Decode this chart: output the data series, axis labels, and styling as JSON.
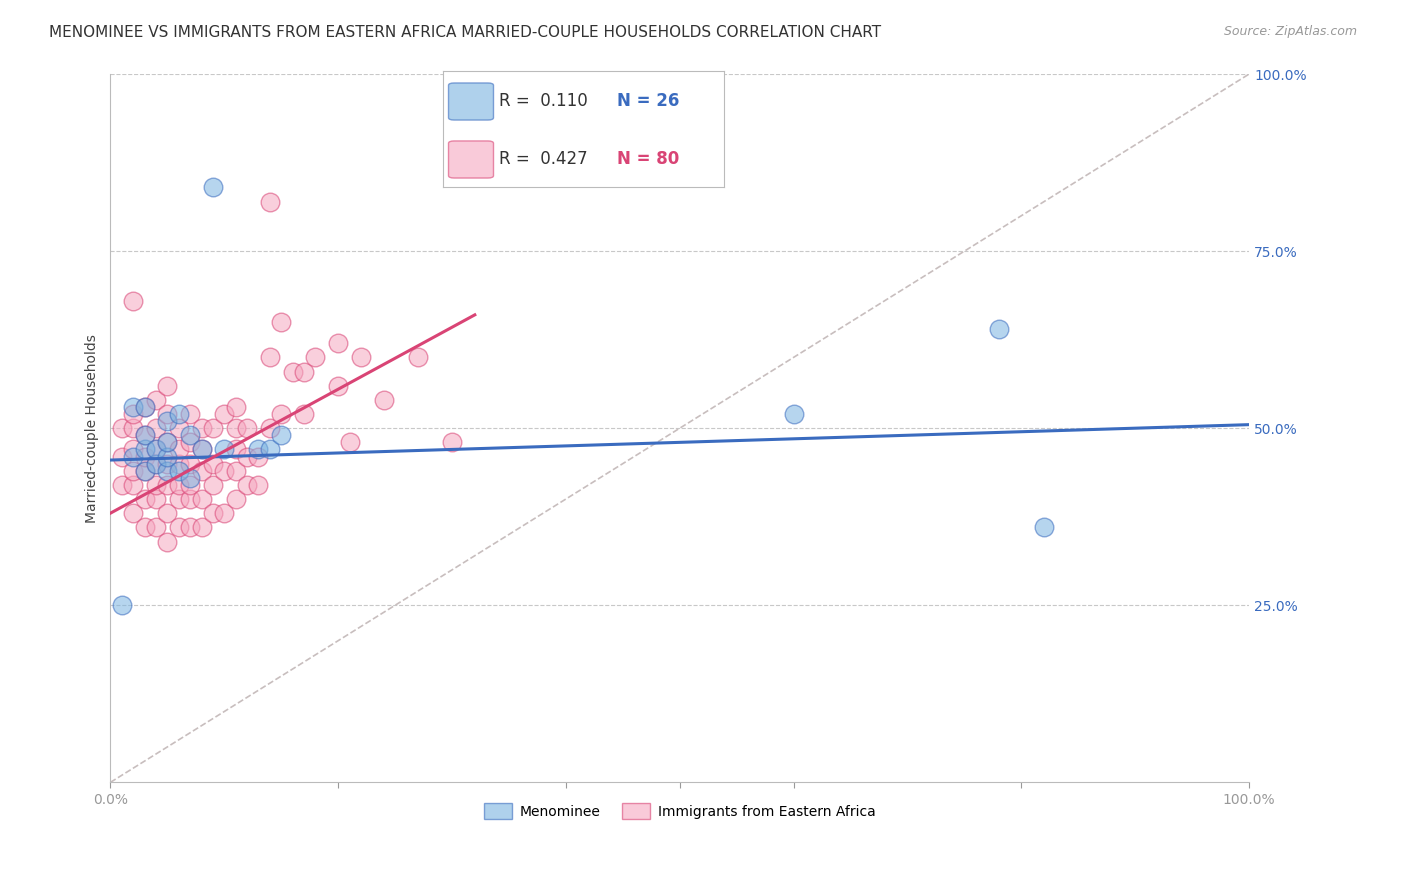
{
  "title": "MENOMINEE VS IMMIGRANTS FROM EASTERN AFRICA MARRIED-COUPLE HOUSEHOLDS CORRELATION CHART",
  "source": "Source: ZipAtlas.com",
  "ylabel": "Married-couple Households",
  "xlim": [
    0,
    1.0
  ],
  "ylim": [
    0,
    1.0
  ],
  "ytick_positions": [
    0.25,
    0.5,
    0.75,
    1.0
  ],
  "ytick_labels": [
    "25.0%",
    "50.0%",
    "75.0%",
    "100.0%"
  ],
  "grid_color": "#c8c8c8",
  "background_color": "#ffffff",
  "legend_r1": "0.110",
  "legend_n1": "26",
  "legend_r2": "0.427",
  "legend_n2": "80",
  "blue_color": "#7ab3e0",
  "pink_color": "#f5a8c0",
  "blue_line_color": "#3a6bbf",
  "pink_line_color": "#d94475",
  "diagonal_color": "#c8bebe",
  "title_fontsize": 11,
  "source_fontsize": 9,
  "axis_label_fontsize": 10,
  "tick_fontsize": 10,
  "legend_fontsize": 12,
  "menominee_x": [
    0.01,
    0.02,
    0.02,
    0.03,
    0.03,
    0.03,
    0.03,
    0.04,
    0.04,
    0.05,
    0.05,
    0.05,
    0.05,
    0.06,
    0.06,
    0.07,
    0.07,
    0.08,
    0.09,
    0.1,
    0.13,
    0.14,
    0.15,
    0.6,
    0.78,
    0.82
  ],
  "menominee_y": [
    0.25,
    0.46,
    0.53,
    0.44,
    0.47,
    0.49,
    0.53,
    0.45,
    0.47,
    0.44,
    0.46,
    0.48,
    0.51,
    0.44,
    0.52,
    0.43,
    0.49,
    0.47,
    0.84,
    0.47,
    0.47,
    0.47,
    0.49,
    0.52,
    0.64,
    0.36
  ],
  "eastern_africa_x": [
    0.01,
    0.01,
    0.01,
    0.02,
    0.02,
    0.02,
    0.02,
    0.02,
    0.02,
    0.02,
    0.03,
    0.03,
    0.03,
    0.03,
    0.03,
    0.03,
    0.04,
    0.04,
    0.04,
    0.04,
    0.04,
    0.04,
    0.04,
    0.05,
    0.05,
    0.05,
    0.05,
    0.05,
    0.05,
    0.05,
    0.06,
    0.06,
    0.06,
    0.06,
    0.06,
    0.06,
    0.07,
    0.07,
    0.07,
    0.07,
    0.07,
    0.07,
    0.08,
    0.08,
    0.08,
    0.08,
    0.08,
    0.09,
    0.09,
    0.09,
    0.09,
    0.1,
    0.1,
    0.1,
    0.11,
    0.11,
    0.11,
    0.11,
    0.11,
    0.12,
    0.12,
    0.12,
    0.13,
    0.13,
    0.14,
    0.14,
    0.14,
    0.15,
    0.15,
    0.16,
    0.17,
    0.17,
    0.18,
    0.2,
    0.2,
    0.21,
    0.22,
    0.24,
    0.27,
    0.3
  ],
  "eastern_africa_y": [
    0.42,
    0.46,
    0.5,
    0.38,
    0.42,
    0.44,
    0.47,
    0.5,
    0.52,
    0.68,
    0.36,
    0.4,
    0.44,
    0.46,
    0.49,
    0.53,
    0.36,
    0.4,
    0.42,
    0.45,
    0.47,
    0.5,
    0.54,
    0.34,
    0.38,
    0.42,
    0.45,
    0.48,
    0.52,
    0.56,
    0.36,
    0.4,
    0.42,
    0.45,
    0.47,
    0.5,
    0.36,
    0.4,
    0.42,
    0.45,
    0.48,
    0.52,
    0.36,
    0.4,
    0.44,
    0.47,
    0.5,
    0.38,
    0.42,
    0.45,
    0.5,
    0.38,
    0.44,
    0.52,
    0.4,
    0.44,
    0.47,
    0.5,
    0.53,
    0.42,
    0.46,
    0.5,
    0.42,
    0.46,
    0.5,
    0.6,
    0.82,
    0.52,
    0.65,
    0.58,
    0.52,
    0.58,
    0.6,
    0.56,
    0.62,
    0.48,
    0.6,
    0.54,
    0.6,
    0.48
  ],
  "trend_men_x0": 0.0,
  "trend_men_y0": 0.455,
  "trend_men_x1": 1.0,
  "trend_men_y1": 0.505,
  "trend_ea_x0": 0.0,
  "trend_ea_y0": 0.38,
  "trend_ea_x1": 0.32,
  "trend_ea_y1": 0.66
}
